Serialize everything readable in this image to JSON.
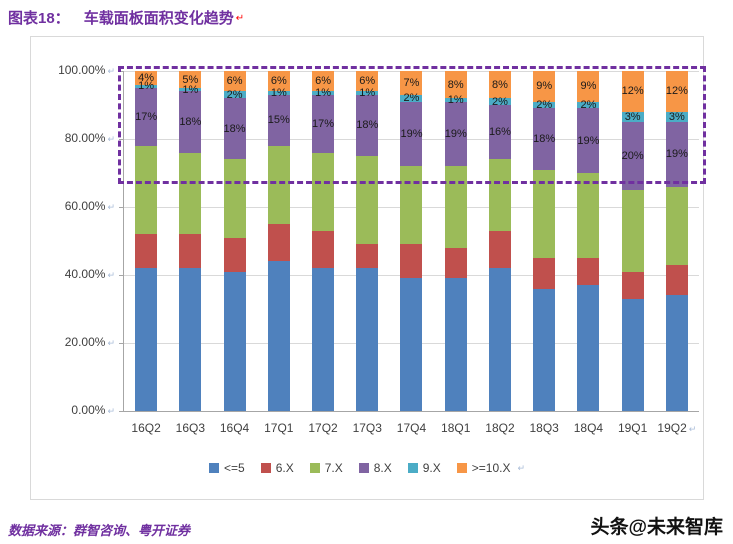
{
  "page": {
    "title_prefix": "图表18：",
    "title_text": "车载面板面积变化趋势",
    "title_mark": "↵",
    "source_label": "数据来源：群智咨询、粤开证券",
    "watermark": "头条@未来智库"
  },
  "chart_data": {
    "type": "bar",
    "subtype": "stacked-100-percent",
    "title": "车载面板面积变化趋势",
    "categories": [
      "16Q2",
      "16Q3",
      "16Q4",
      "17Q1",
      "17Q2",
      "17Q3",
      "17Q4",
      "18Q1",
      "18Q2",
      "18Q3",
      "18Q4",
      "19Q1",
      "19Q2"
    ],
    "series": [
      {
        "name": "<=5",
        "color": "#4F81BD",
        "labels_shown": false,
        "values": [
          42,
          42,
          41,
          44,
          42,
          42,
          39,
          39,
          42,
          36,
          37,
          33,
          34
        ]
      },
      {
        "name": "6.X",
        "color": "#C0504D",
        "labels_shown": false,
        "values": [
          10,
          10,
          10,
          11,
          11,
          7,
          10,
          9,
          11,
          9,
          8,
          8,
          9
        ]
      },
      {
        "name": "7.X",
        "color": "#9BBB59",
        "labels_shown": false,
        "values": [
          26,
          24,
          23,
          23,
          23,
          26,
          23,
          24,
          21,
          26,
          25,
          24,
          23
        ]
      },
      {
        "name": "8.X",
        "color": "#8064A2",
        "labels_shown": true,
        "values": [
          17,
          18,
          18,
          15,
          17,
          18,
          19,
          19,
          16,
          18,
          19,
          20,
          19
        ]
      },
      {
        "name": "9.X",
        "color": "#4BACC6",
        "labels_shown": true,
        "values": [
          1,
          1,
          2,
          1,
          1,
          1,
          2,
          1,
          2,
          2,
          2,
          3,
          3
        ]
      },
      {
        "name": ">=10.X",
        "color": "#F79646",
        "labels_shown": true,
        "values": [
          4,
          5,
          6,
          6,
          6,
          6,
          7,
          8,
          8,
          9,
          9,
          12,
          12
        ]
      }
    ],
    "yticks": [
      {
        "label": "0.00%",
        "value": 0
      },
      {
        "label": "20.00%",
        "value": 20
      },
      {
        "label": "40.00%",
        "value": 40
      },
      {
        "label": "60.00%",
        "value": 60
      },
      {
        "label": "80.00%",
        "value": 80
      },
      {
        "label": "100.00%",
        "value": 100
      }
    ],
    "ylim": [
      0,
      100
    ],
    "grid": true,
    "legend_position": "bottom",
    "highlight_box": {
      "color": "#7030A0",
      "y_from": 68.5,
      "y_to": 101.5
    },
    "paragraph_mark": "↵"
  }
}
